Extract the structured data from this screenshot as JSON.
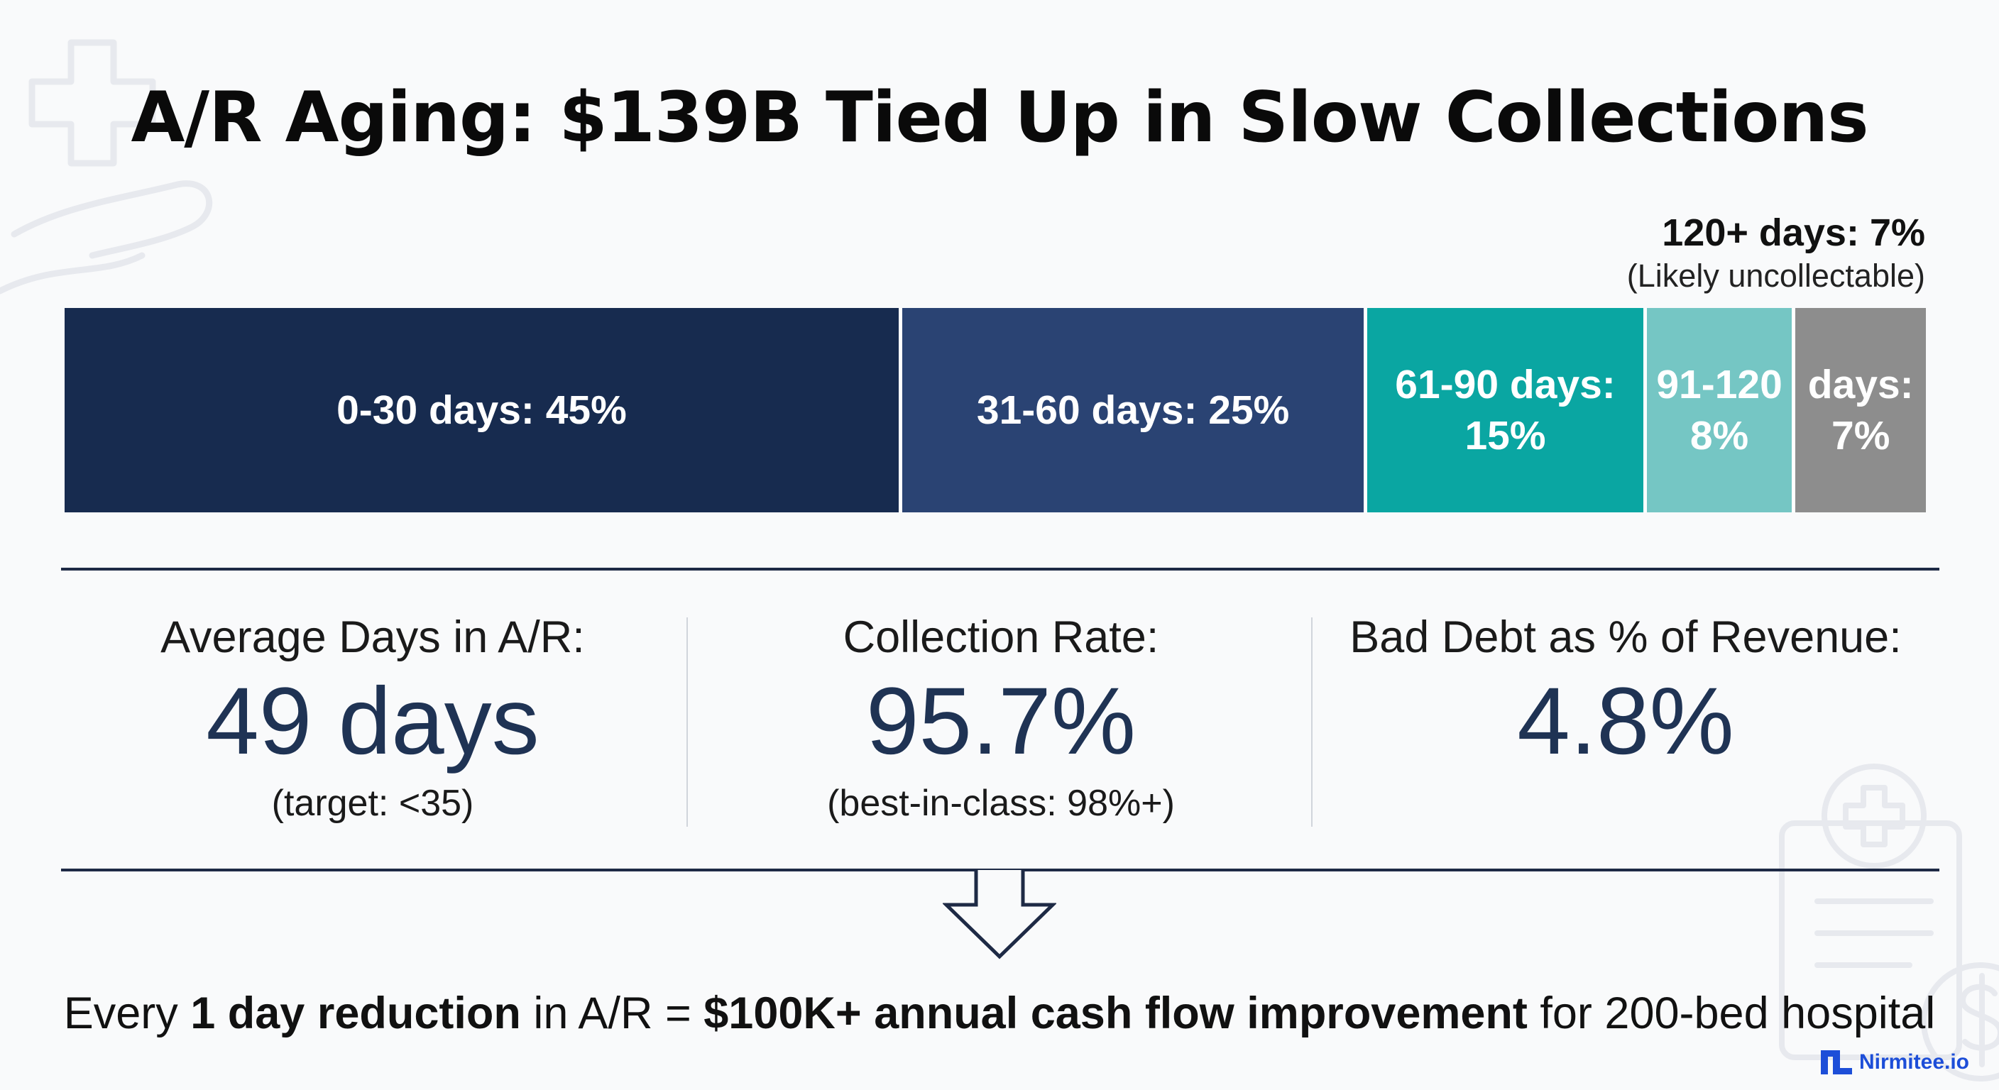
{
  "title": "A/R Aging: $139B Tied Up in Slow Collections",
  "callout": {
    "line1": "120+ days: 7%",
    "line2": "(Likely uncollectable)"
  },
  "chart_data": {
    "type": "bar",
    "orientation": "horizontal-stacked",
    "categories": [
      "0-30 days",
      "31-60 days",
      "61-90 days",
      "91-120",
      "120+ days"
    ],
    "values": [
      45,
      25,
      15,
      8,
      7
    ],
    "unit": "%",
    "segment_labels": [
      "0-30 days: 45%",
      "31-60 days: 25%",
      "61-90 days:\n15%",
      "91-120\n8%",
      "days:\n7%"
    ],
    "colors": [
      "#172b4f",
      "#2a4373",
      "#0aa6a2",
      "#75c6c4",
      "#8d8d8d"
    ],
    "title": "A/R Aging: $139B Tied Up in Slow Collections"
  },
  "metrics": [
    {
      "label": "Average Days in A/R:",
      "value": "49 days",
      "note": "(target: <35)"
    },
    {
      "label": "Collection Rate:",
      "value": "95.7%",
      "note": "(best-in-class: 98%+)"
    },
    {
      "label": "Bad Debt as % of Revenue:",
      "value": "4.8%",
      "note": ""
    }
  ],
  "footer": {
    "p1": "Every ",
    "b1": "1 day reduction",
    "p2": " in A/R = ",
    "b2": "$100K+ annual cash flow improvement",
    "p3": " for 200-bed hospital"
  },
  "logo": {
    "text": "Nirmitee.io",
    "icon": "nirmitee-logo-icon"
  },
  "icons": [
    "medical-cross-hand-icon",
    "down-arrow-icon",
    "clipboard-dollar-icon"
  ],
  "colors": {
    "accent": "#1f3354",
    "rule": "#1e2a45",
    "brand": "#1d4ed8"
  }
}
